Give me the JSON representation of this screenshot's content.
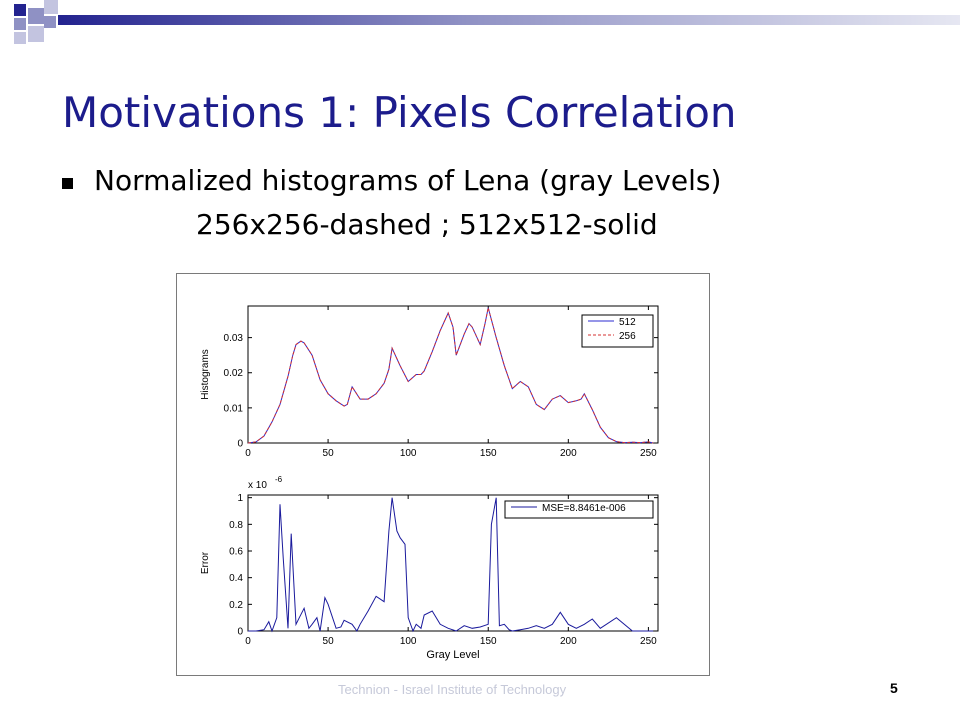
{
  "slide": {
    "title": "Motivations 1: Pixels Correlation",
    "bullet_line_1": "Normalized histograms of Lena (gray Levels)",
    "bullet_line_2": "256x256-dashed ; 512x512-solid",
    "footer": "Technion - Israel Institute of Technology",
    "page_number": "5"
  },
  "colors": {
    "title": "#1c1c8c",
    "series_512": "#2b2bd1",
    "series_256": "#d43030",
    "error_line": "#1a1a9c",
    "deco_dark": "#23238f",
    "deco_light": "#8f91c4"
  },
  "chart_data": [
    {
      "type": "line",
      "xlabel": "",
      "ylabel": "Histograms",
      "xlim": [
        0,
        256
      ],
      "ylim": [
        0,
        0.039
      ],
      "xticks": [
        "0",
        "50",
        "100",
        "150",
        "200",
        "250"
      ],
      "yticks": [
        "0",
        "0.01",
        "0.02",
        "0.03"
      ],
      "legend_position": "top-right",
      "x": [
        0,
        5,
        10,
        15,
        20,
        25,
        28,
        30,
        33,
        35,
        40,
        45,
        50,
        55,
        60,
        62,
        65,
        70,
        75,
        80,
        85,
        88,
        90,
        95,
        100,
        105,
        108,
        110,
        115,
        120,
        125,
        128,
        130,
        135,
        138,
        140,
        145,
        148,
        150,
        155,
        160,
        165,
        170,
        175,
        180,
        185,
        190,
        195,
        200,
        205,
        208,
        210,
        215,
        220,
        225,
        230,
        235,
        240,
        245,
        250,
        253
      ],
      "series": [
        {
          "name": "512",
          "style": "solid",
          "values": [
            0,
            0.0003,
            0.002,
            0.006,
            0.011,
            0.019,
            0.025,
            0.028,
            0.029,
            0.0285,
            0.025,
            0.018,
            0.014,
            0.012,
            0.0105,
            0.011,
            0.016,
            0.0125,
            0.0125,
            0.014,
            0.017,
            0.021,
            0.027,
            0.022,
            0.0175,
            0.0195,
            0.0195,
            0.0205,
            0.026,
            0.032,
            0.037,
            0.033,
            0.025,
            0.031,
            0.034,
            0.033,
            0.028,
            0.034,
            0.0385,
            0.03,
            0.022,
            0.0155,
            0.0175,
            0.016,
            0.011,
            0.0095,
            0.0125,
            0.0135,
            0.0115,
            0.012,
            0.0125,
            0.014,
            0.0095,
            0.0045,
            0.0015,
            0.0004,
            0.0001,
            0.0002,
            0.0001,
            0.0003,
            0
          ],
          "color": "#2b2bd1"
        },
        {
          "name": "256",
          "style": "dashed",
          "values": [
            0,
            0.0003,
            0.002,
            0.006,
            0.011,
            0.019,
            0.025,
            0.028,
            0.029,
            0.0285,
            0.025,
            0.018,
            0.014,
            0.012,
            0.0105,
            0.011,
            0.016,
            0.0125,
            0.0125,
            0.014,
            0.017,
            0.021,
            0.027,
            0.022,
            0.0175,
            0.0195,
            0.0195,
            0.0205,
            0.026,
            0.032,
            0.037,
            0.033,
            0.025,
            0.031,
            0.034,
            0.033,
            0.028,
            0.034,
            0.0385,
            0.03,
            0.022,
            0.0155,
            0.0175,
            0.016,
            0.011,
            0.0095,
            0.0125,
            0.0135,
            0.0115,
            0.012,
            0.0125,
            0.014,
            0.0095,
            0.0045,
            0.0015,
            0.0004,
            0.0001,
            0.0002,
            0.0001,
            0.0003,
            0
          ],
          "color": "#d43030"
        }
      ]
    },
    {
      "type": "line",
      "xlabel": "Gray Level",
      "ylabel": "Error",
      "scale_label": "x 10",
      "scale_exponent": "-6",
      "xlim": [
        0,
        256
      ],
      "ylim": [
        0,
        1.02
      ],
      "xticks": [
        "0",
        "50",
        "100",
        "150",
        "200",
        "250"
      ],
      "yticks": [
        "0",
        "0.2",
        "0.4",
        "0.6",
        "0.8",
        "1"
      ],
      "legend_position": "top-right",
      "x": [
        0,
        5,
        10,
        13,
        15,
        18,
        20,
        22,
        25,
        27,
        30,
        32,
        35,
        38,
        40,
        43,
        45,
        48,
        50,
        55,
        58,
        60,
        65,
        68,
        70,
        75,
        80,
        85,
        88,
        90,
        93,
        95,
        98,
        100,
        103,
        105,
        108,
        110,
        115,
        120,
        125,
        130,
        135,
        140,
        145,
        150,
        152,
        155,
        157,
        160,
        163,
        165,
        170,
        175,
        180,
        185,
        190,
        195,
        200,
        205,
        210,
        215,
        220,
        230,
        240,
        250,
        253
      ],
      "series": [
        {
          "name": "MSE=8.8461e-006",
          "values": [
            0,
            0,
            0.01,
            0.07,
            0,
            0.1,
            0.95,
            0.55,
            0.02,
            0.73,
            0.05,
            0.1,
            0.17,
            0.02,
            0.05,
            0.1,
            0,
            0.25,
            0.2,
            0.02,
            0.03,
            0.08,
            0.05,
            0,
            0.05,
            0.15,
            0.26,
            0.22,
            0.75,
            1.0,
            0.75,
            0.7,
            0.65,
            0.1,
            0,
            0.05,
            0.02,
            0.12,
            0.15,
            0.05,
            0.02,
            0,
            0.04,
            0.02,
            0.03,
            0.05,
            0.8,
            1.0,
            0.04,
            0.05,
            0.01,
            0,
            0.01,
            0.02,
            0.04,
            0.02,
            0.05,
            0.14,
            0.05,
            0.02,
            0.05,
            0.09,
            0.02,
            0.1,
            0,
            0,
            0
          ],
          "color": "#1a1a9c"
        }
      ]
    }
  ]
}
